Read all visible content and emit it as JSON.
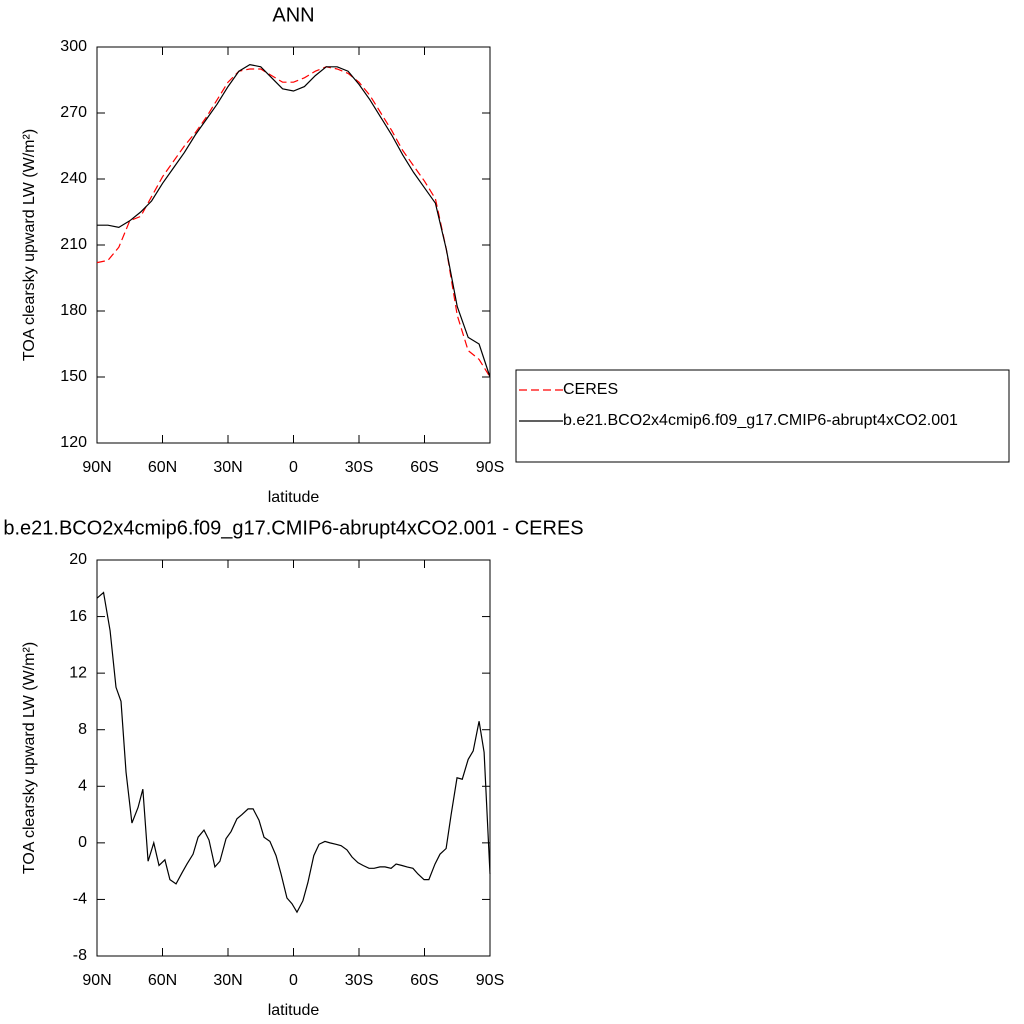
{
  "chart_data": [
    {
      "type": "line",
      "title": "ANN",
      "xlabel": "latitude",
      "ylabel": "TOA clearsky upward LW (W/m²)",
      "xlim": [
        90,
        -90
      ],
      "ylim": [
        120,
        300
      ],
      "xticks": [
        {
          "value": 90,
          "label": "90N"
        },
        {
          "value": 60,
          "label": "60N"
        },
        {
          "value": 30,
          "label": "30N"
        },
        0,
        {
          "value": -30,
          "label": "30S"
        },
        {
          "value": -60,
          "label": "60S"
        },
        {
          "value": -90,
          "label": "90S"
        }
      ],
      "yticks": [
        120,
        150,
        180,
        210,
        240,
        270,
        300
      ],
      "legend": "right",
      "x": [
        90,
        85,
        80,
        75,
        70,
        65,
        60,
        55,
        50,
        45,
        40,
        35,
        30,
        25,
        20,
        15,
        10,
        5,
        0,
        -5,
        -10,
        -15,
        -20,
        -25,
        -30,
        -35,
        -40,
        -45,
        -50,
        -55,
        -60,
        -65,
        -70,
        -75,
        -80,
        -85,
        -90
      ],
      "series": [
        {
          "name": "CERES",
          "color": "#ff0000",
          "line_style": "dashed",
          "values": [
            202,
            203,
            209,
            221,
            223,
            232,
            241,
            248,
            255,
            261,
            268,
            276,
            284,
            289,
            290,
            290,
            287,
            284,
            284,
            286,
            289,
            291,
            290,
            288,
            284,
            278,
            270,
            262,
            253,
            246,
            239,
            231,
            208,
            178,
            162,
            158,
            150
          ]
        },
        {
          "name": "b.e21.BCO2x4cmip6.f09_g17.CMIP6-abrupt4xCO2.001",
          "color": "#000000",
          "line_style": "solid",
          "values": [
            219,
            219,
            218,
            221,
            225,
            230,
            238,
            245,
            252,
            260,
            267,
            274,
            282,
            289,
            292,
            291,
            286,
            281,
            280,
            282,
            287,
            291,
            291,
            289,
            283,
            276,
            268,
            260,
            251,
            243,
            236,
            229,
            208,
            182,
            168,
            165,
            150
          ]
        }
      ]
    },
    {
      "type": "line",
      "title": "b.e21.BCO2x4cmip6.f09_g17.CMIP6-abrupt4xCO2.001 - CERES",
      "xlabel": "latitude",
      "ylabel": "TOA clearsky upward LW (W/m²)",
      "xlim": [
        90,
        -90
      ],
      "ylim": [
        -8,
        20
      ],
      "xticks": [
        {
          "value": 90,
          "label": "90N"
        },
        {
          "value": 60,
          "label": "60N"
        },
        {
          "value": 30,
          "label": "30N"
        },
        0,
        {
          "value": -30,
          "label": "30S"
        },
        {
          "value": -60,
          "label": "60S"
        },
        {
          "value": -90,
          "label": "90S"
        }
      ],
      "yticks": [
        -8,
        -4,
        0,
        4,
        8,
        12,
        16,
        20
      ],
      "x": [
        90,
        87,
        84,
        81.3,
        79,
        76.7,
        74,
        71.2,
        69,
        66.6,
        64,
        61.6,
        58.9,
        56.6,
        53.8,
        51,
        48.8,
        46,
        43.7,
        41,
        38.7,
        36,
        33.7,
        30.9,
        28.6,
        25.9,
        23.6,
        20.8,
        18.5,
        15.8,
        13.5,
        10.8,
        8,
        5.7,
        3,
        0.7,
        -1.6,
        -4.3,
        -6.6,
        -9.3,
        -11.7,
        -14.4,
        -16.7,
        -19.5,
        -21.8,
        -24.5,
        -26.8,
        -29.5,
        -31.9,
        -34.6,
        -36.9,
        -39.6,
        -41.9,
        -44.7,
        -47,
        -49.7,
        -52,
        -54.7,
        -57,
        -59.8,
        -62,
        -64.8,
        -67.1,
        -69.9,
        -72.2,
        -74.9,
        -77.3,
        -80,
        -82.3,
        -85,
        -87.3,
        -90
      ],
      "series": [
        {
          "name": null,
          "color": "#000000",
          "line_style": "solid",
          "values": [
            17.3,
            17.7,
            15,
            11,
            10,
            5,
            1.4,
            2.5,
            3.8,
            -1.3,
            0,
            -1.6,
            -1.2,
            -2.6,
            -2.9,
            -2.1,
            -1.5,
            -0.8,
            0.4,
            0.9,
            0.2,
            -1.7,
            -1.3,
            0.3,
            0.8,
            1.7,
            2,
            2.4,
            2.4,
            1.6,
            0.4,
            0.1,
            -0.9,
            -2.2,
            -3.9,
            -4.3,
            -4.9,
            -4.1,
            -2.8,
            -0.9,
            -0.1,
            0.1,
            0,
            -0.1,
            -0.2,
            -0.5,
            -1,
            -1.4,
            -1.6,
            -1.8,
            -1.8,
            -1.7,
            -1.7,
            -1.8,
            -1.5,
            -1.6,
            -1.7,
            -1.8,
            -2.2,
            -2.6,
            -2.6,
            -1.5,
            -0.8,
            -0.4,
            2,
            4.6,
            4.5,
            5.9,
            6.5,
            8.6,
            6.4,
            -2.2
          ]
        }
      ]
    }
  ]
}
